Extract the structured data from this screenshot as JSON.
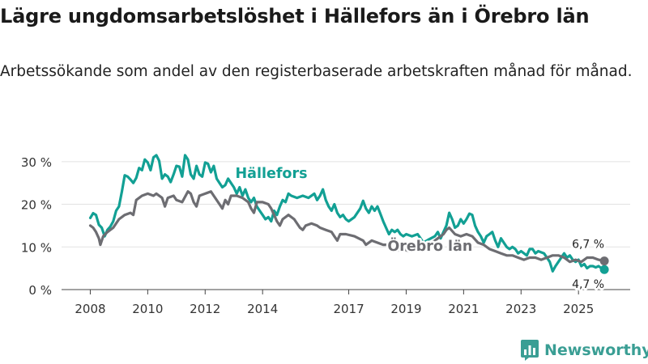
{
  "title": "Lägre ungdomsarbetslöshet i Hällefors än i Örebro län",
  "subtitle": "Arbetssökande som andel av den registerbaserade arbetskraften månad för månad.",
  "brand": "Newsworthy",
  "colors": {
    "hallefors": "#12a094",
    "orebro": "#6d6d72",
    "grid": "#e2e2e2",
    "brand": "#3a9e94"
  },
  "chart_data": {
    "type": "line",
    "ylim": [
      0,
      33
    ],
    "yticks": [
      0,
      10,
      20,
      30
    ],
    "ytick_labels": [
      "0 %",
      "10 %",
      "20 %",
      "30 %"
    ],
    "xticks": [
      2008,
      2010,
      2012,
      2014,
      2017,
      2019,
      2021,
      2023,
      2025
    ],
    "xtick_labels": [
      "2008",
      "2010",
      "2012",
      "2014",
      "2017",
      "2019",
      "2021",
      "2023",
      "2025"
    ],
    "xlim": [
      2007.0,
      2026.8
    ],
    "series": [
      {
        "name": "Hällefors",
        "label": "Hällefors",
        "end_label": "4,7 %",
        "color_key": "hallefors",
        "points": [
          [
            2008.0,
            16.8
          ],
          [
            2008.1,
            17.9
          ],
          [
            2008.2,
            17.5
          ],
          [
            2008.3,
            15.2
          ],
          [
            2008.4,
            14.5
          ],
          [
            2008.5,
            12.5
          ],
          [
            2008.6,
            14.0
          ],
          [
            2008.7,
            14.8
          ],
          [
            2008.8,
            16.0
          ],
          [
            2008.9,
            18.5
          ],
          [
            2009.0,
            19.5
          ],
          [
            2009.1,
            23.0
          ],
          [
            2009.2,
            26.8
          ],
          [
            2009.3,
            26.5
          ],
          [
            2009.4,
            25.8
          ],
          [
            2009.5,
            25.0
          ],
          [
            2009.6,
            26.2
          ],
          [
            2009.7,
            28.5
          ],
          [
            2009.8,
            28.0
          ],
          [
            2009.9,
            30.5
          ],
          [
            2010.0,
            29.8
          ],
          [
            2010.1,
            28.0
          ],
          [
            2010.2,
            31.0
          ],
          [
            2010.3,
            31.5
          ],
          [
            2010.4,
            30.2
          ],
          [
            2010.5,
            26.0
          ],
          [
            2010.6,
            27.0
          ],
          [
            2010.7,
            26.5
          ],
          [
            2010.8,
            25.2
          ],
          [
            2010.9,
            27.0
          ],
          [
            2011.0,
            29.0
          ],
          [
            2011.1,
            28.8
          ],
          [
            2011.2,
            26.5
          ],
          [
            2011.3,
            31.5
          ],
          [
            2011.4,
            30.5
          ],
          [
            2011.5,
            27.0
          ],
          [
            2011.6,
            26.0
          ],
          [
            2011.7,
            29.0
          ],
          [
            2011.8,
            27.0
          ],
          [
            2011.9,
            26.5
          ],
          [
            2012.0,
            29.8
          ],
          [
            2012.1,
            29.5
          ],
          [
            2012.2,
            27.5
          ],
          [
            2012.3,
            29.0
          ],
          [
            2012.4,
            26.0
          ],
          [
            2012.5,
            25.0
          ],
          [
            2012.6,
            24.0
          ],
          [
            2012.7,
            24.5
          ],
          [
            2012.8,
            26.0
          ],
          [
            2013.0,
            24.0
          ],
          [
            2013.1,
            22.5
          ],
          [
            2013.2,
            24.0
          ],
          [
            2013.3,
            22.0
          ],
          [
            2013.4,
            23.5
          ],
          [
            2013.5,
            21.5
          ],
          [
            2013.6,
            20.5
          ],
          [
            2013.7,
            21.5
          ],
          [
            2013.8,
            19.5
          ],
          [
            2013.9,
            18.5
          ],
          [
            2014.0,
            17.5
          ],
          [
            2014.1,
            16.5
          ],
          [
            2014.2,
            17.0
          ],
          [
            2014.3,
            16.0
          ],
          [
            2014.4,
            18.5
          ],
          [
            2014.5,
            17.5
          ],
          [
            2014.6,
            19.5
          ],
          [
            2014.7,
            21.0
          ],
          [
            2014.8,
            20.5
          ],
          [
            2014.9,
            22.5
          ],
          [
            2015.0,
            22.0
          ],
          [
            2015.2,
            21.5
          ],
          [
            2015.4,
            22.0
          ],
          [
            2015.6,
            21.5
          ],
          [
            2015.8,
            22.5
          ],
          [
            2015.9,
            21.0
          ],
          [
            2016.0,
            22.0
          ],
          [
            2016.1,
            23.5
          ],
          [
            2016.2,
            21.0
          ],
          [
            2016.3,
            19.5
          ],
          [
            2016.4,
            18.5
          ],
          [
            2016.5,
            20.0
          ],
          [
            2016.6,
            18.0
          ],
          [
            2016.7,
            17.0
          ],
          [
            2016.8,
            17.5
          ],
          [
            2016.9,
            16.5
          ],
          [
            2017.0,
            16.0
          ],
          [
            2017.2,
            17.0
          ],
          [
            2017.4,
            19.0
          ],
          [
            2017.5,
            20.8
          ],
          [
            2017.6,
            19.0
          ],
          [
            2017.7,
            18.0
          ],
          [
            2017.8,
            19.5
          ],
          [
            2017.9,
            18.5
          ],
          [
            2018.0,
            19.5
          ],
          [
            2018.1,
            17.8
          ],
          [
            2018.2,
            16.0
          ],
          [
            2018.3,
            14.5
          ],
          [
            2018.4,
            13.0
          ],
          [
            2018.5,
            14.0
          ],
          [
            2018.6,
            13.5
          ],
          [
            2018.7,
            14.0
          ],
          [
            2018.8,
            13.0
          ],
          [
            2018.9,
            12.5
          ],
          [
            2019.0,
            13.0
          ],
          [
            2019.2,
            12.5
          ],
          [
            2019.4,
            13.0
          ],
          [
            2019.5,
            12.0
          ],
          [
            2019.6,
            11.0
          ],
          [
            2019.8,
            11.8
          ],
          [
            2020.0,
            12.5
          ],
          [
            2020.1,
            13.5
          ],
          [
            2020.2,
            12.0
          ],
          [
            2020.3,
            13.5
          ],
          [
            2020.4,
            15.0
          ],
          [
            2020.5,
            18.0
          ],
          [
            2020.6,
            16.5
          ],
          [
            2020.7,
            14.5
          ],
          [
            2020.8,
            15.0
          ],
          [
            2020.9,
            16.5
          ],
          [
            2021.0,
            15.5
          ],
          [
            2021.1,
            16.5
          ],
          [
            2021.2,
            17.8
          ],
          [
            2021.3,
            17.5
          ],
          [
            2021.4,
            15.0
          ],
          [
            2021.5,
            13.5
          ],
          [
            2021.6,
            12.5
          ],
          [
            2021.7,
            11.0
          ],
          [
            2021.8,
            12.5
          ],
          [
            2021.9,
            13.0
          ],
          [
            2022.0,
            13.5
          ],
          [
            2022.1,
            11.5
          ],
          [
            2022.2,
            10.0
          ],
          [
            2022.3,
            12.0
          ],
          [
            2022.4,
            11.0
          ],
          [
            2022.5,
            10.0
          ],
          [
            2022.6,
            9.5
          ],
          [
            2022.7,
            10.0
          ],
          [
            2022.8,
            9.5
          ],
          [
            2022.9,
            8.5
          ],
          [
            2023.0,
            9.0
          ],
          [
            2023.2,
            8.0
          ],
          [
            2023.3,
            9.5
          ],
          [
            2023.4,
            9.5
          ],
          [
            2023.5,
            8.5
          ],
          [
            2023.6,
            9.0
          ],
          [
            2023.8,
            8.5
          ],
          [
            2023.9,
            7.5
          ],
          [
            2024.0,
            6.5
          ],
          [
            2024.1,
            4.3
          ],
          [
            2024.2,
            5.5
          ],
          [
            2024.3,
            6.5
          ],
          [
            2024.4,
            7.5
          ],
          [
            2024.5,
            8.5
          ],
          [
            2024.6,
            7.5
          ],
          [
            2024.7,
            8.0
          ],
          [
            2024.8,
            7.0
          ],
          [
            2024.9,
            6.5
          ],
          [
            2025.0,
            7.0
          ],
          [
            2025.1,
            5.5
          ],
          [
            2025.2,
            6.0
          ],
          [
            2025.3,
            5.0
          ],
          [
            2025.4,
            5.5
          ],
          [
            2025.5,
            5.5
          ],
          [
            2025.6,
            5.2
          ],
          [
            2025.7,
            5.5
          ],
          [
            2025.8,
            5.0
          ],
          [
            2025.9,
            4.7
          ]
        ]
      },
      {
        "name": "Örebro län",
        "label": "Örebro län",
        "end_label": "6,7 %",
        "color_key": "orebro",
        "points": [
          [
            2008.0,
            15.0
          ],
          [
            2008.1,
            14.5
          ],
          [
            2008.2,
            13.5
          ],
          [
            2008.3,
            12.0
          ],
          [
            2008.35,
            10.5
          ],
          [
            2008.45,
            12.5
          ],
          [
            2008.6,
            13.5
          ],
          [
            2008.8,
            14.5
          ],
          [
            2009.0,
            16.5
          ],
          [
            2009.2,
            17.5
          ],
          [
            2009.4,
            18.0
          ],
          [
            2009.5,
            17.5
          ],
          [
            2009.6,
            21.0
          ],
          [
            2009.8,
            22.0
          ],
          [
            2010.0,
            22.5
          ],
          [
            2010.2,
            22.0
          ],
          [
            2010.3,
            22.5
          ],
          [
            2010.5,
            21.5
          ],
          [
            2010.6,
            19.5
          ],
          [
            2010.7,
            21.5
          ],
          [
            2010.9,
            22.0
          ],
          [
            2011.0,
            21.0
          ],
          [
            2011.2,
            20.5
          ],
          [
            2011.4,
            23.0
          ],
          [
            2011.5,
            22.5
          ],
          [
            2011.6,
            20.5
          ],
          [
            2011.7,
            19.5
          ],
          [
            2011.8,
            22.0
          ],
          [
            2012.0,
            22.5
          ],
          [
            2012.2,
            23.0
          ],
          [
            2012.3,
            22.0
          ],
          [
            2012.5,
            20.0
          ],
          [
            2012.6,
            19.0
          ],
          [
            2012.7,
            21.0
          ],
          [
            2012.8,
            20.0
          ],
          [
            2012.9,
            22.0
          ],
          [
            2013.1,
            22.0
          ],
          [
            2013.3,
            21.5
          ],
          [
            2013.5,
            20.5
          ],
          [
            2013.6,
            19.0
          ],
          [
            2013.7,
            18.0
          ],
          [
            2013.8,
            20.5
          ],
          [
            2014.0,
            20.5
          ],
          [
            2014.2,
            20.0
          ],
          [
            2014.3,
            19.0
          ],
          [
            2014.4,
            17.5
          ],
          [
            2014.5,
            16.0
          ],
          [
            2014.6,
            15.0
          ],
          [
            2014.7,
            16.5
          ],
          [
            2014.9,
            17.5
          ],
          [
            2015.1,
            16.5
          ],
          [
            2015.3,
            14.5
          ],
          [
            2015.4,
            14.0
          ],
          [
            2015.5,
            15.0
          ],
          [
            2015.7,
            15.5
          ],
          [
            2015.9,
            15.0
          ],
          [
            2016.0,
            14.5
          ],
          [
            2016.2,
            14.0
          ],
          [
            2016.4,
            13.5
          ],
          [
            2016.5,
            12.5
          ],
          [
            2016.6,
            11.5
          ],
          [
            2016.7,
            13.0
          ],
          [
            2016.9,
            13.0
          ],
          [
            2017.2,
            12.5
          ],
          [
            2017.5,
            11.5
          ],
          [
            2017.6,
            10.5
          ],
          [
            2017.8,
            11.5
          ],
          [
            2018.0,
            11.0
          ],
          [
            2018.2,
            10.5
          ],
          [
            2018.4,
            10.5
          ],
          [
            2018.5,
            9.5
          ],
          [
            2018.6,
            9.0
          ],
          [
            2018.9,
            9.5
          ],
          [
            2019.1,
            9.0
          ],
          [
            2019.3,
            9.5
          ],
          [
            2019.5,
            10.0
          ],
          [
            2019.7,
            11.0
          ],
          [
            2019.9,
            11.0
          ],
          [
            2020.1,
            12.0
          ],
          [
            2020.3,
            13.0
          ],
          [
            2020.4,
            14.0
          ],
          [
            2020.5,
            14.5
          ],
          [
            2020.7,
            13.0
          ],
          [
            2020.9,
            12.5
          ],
          [
            2021.1,
            13.0
          ],
          [
            2021.3,
            12.5
          ],
          [
            2021.5,
            11.0
          ],
          [
            2021.7,
            10.5
          ],
          [
            2021.9,
            9.5
          ],
          [
            2022.1,
            9.0
          ],
          [
            2022.3,
            8.5
          ],
          [
            2022.5,
            8.0
          ],
          [
            2022.7,
            8.0
          ],
          [
            2022.9,
            7.5
          ],
          [
            2023.1,
            7.0
          ],
          [
            2023.3,
            7.5
          ],
          [
            2023.5,
            7.5
          ],
          [
            2023.7,
            7.0
          ],
          [
            2023.9,
            7.5
          ],
          [
            2024.1,
            8.0
          ],
          [
            2024.3,
            8.0
          ],
          [
            2024.5,
            7.5
          ],
          [
            2024.7,
            6.5
          ],
          [
            2024.9,
            7.0
          ],
          [
            2025.1,
            6.5
          ],
          [
            2025.3,
            7.5
          ],
          [
            2025.5,
            7.5
          ],
          [
            2025.7,
            7.0
          ],
          [
            2025.9,
            6.7
          ]
        ]
      }
    ]
  }
}
